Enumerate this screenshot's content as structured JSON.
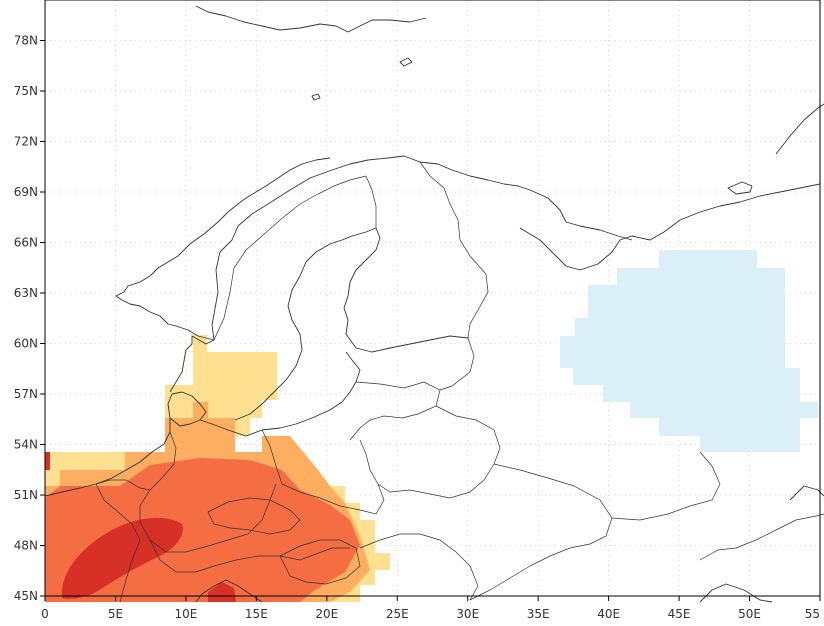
{
  "map": {
    "x_ticks": [
      "0",
      "5E",
      "10E",
      "15E",
      "20E",
      "25E",
      "30E",
      "35E",
      "40E",
      "45E",
      "50E",
      "55"
    ],
    "y_ticks": [
      "45N",
      "48N",
      "51N",
      "54N",
      "57N",
      "60N",
      "63N",
      "66N",
      "69N",
      "72N",
      "75N",
      "78N"
    ],
    "colors": {
      "light_yellow": "#fee090",
      "light_orange": "#fdae61",
      "orange": "#f46d43",
      "red": "#d73027",
      "light_blue": "#dbeff8",
      "coastline": "#333333"
    }
  }
}
